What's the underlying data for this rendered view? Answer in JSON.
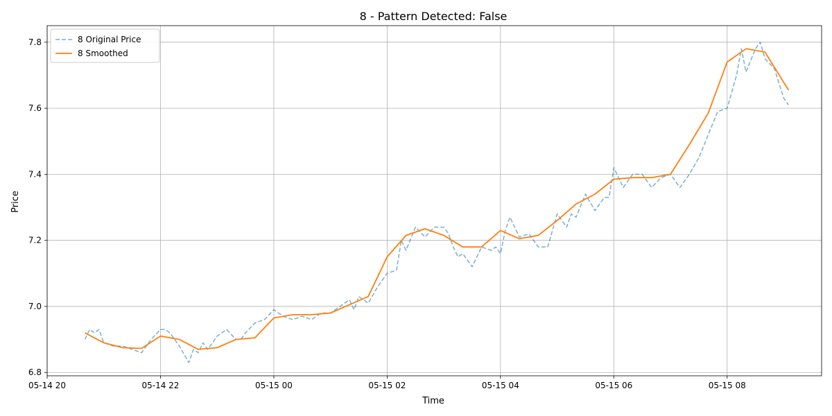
{
  "chart_data": {
    "type": "line",
    "title": "8 - Pattern Detected: False",
    "xlabel": "Time",
    "ylabel": "Price",
    "xlim": [
      "2024-05-14T20:00",
      "2024-05-15T09:40"
    ],
    "ylim": [
      6.79,
      7.85
    ],
    "x_ticks": [
      {
        "value": "2024-05-14T20:00",
        "label": "05-14 20"
      },
      {
        "value": "2024-05-14T22:00",
        "label": "05-14 22"
      },
      {
        "value": "2024-05-15T00:00",
        "label": "05-15 00"
      },
      {
        "value": "2024-05-15T02:00",
        "label": "05-15 02"
      },
      {
        "value": "2024-05-15T04:00",
        "label": "05-15 04"
      },
      {
        "value": "2024-05-15T06:00",
        "label": "05-15 06"
      },
      {
        "value": "2024-05-15T08:00",
        "label": "05-15 08"
      }
    ],
    "y_ticks": [
      {
        "value": 6.8,
        "label": "6.8"
      },
      {
        "value": 7.0,
        "label": "7.0"
      },
      {
        "value": 7.2,
        "label": "7.2"
      },
      {
        "value": 7.4,
        "label": "7.4"
      },
      {
        "value": 7.6,
        "label": "7.6"
      },
      {
        "value": 7.8,
        "label": "7.8"
      }
    ],
    "grid": true,
    "legend": "top-left",
    "series": [
      {
        "name": "8 Original Price",
        "color": "#1f77b4",
        "style": "dashed",
        "x": [
          "2024-05-14T20:40",
          "2024-05-14T20:45",
          "2024-05-14T20:50",
          "2024-05-14T20:55",
          "2024-05-14T21:00",
          "2024-05-14T21:10",
          "2024-05-14T21:20",
          "2024-05-14T21:30",
          "2024-05-14T21:40",
          "2024-05-14T21:50",
          "2024-05-14T22:00",
          "2024-05-14T22:05",
          "2024-05-14T22:10",
          "2024-05-14T22:20",
          "2024-05-14T22:30",
          "2024-05-14T22:35",
          "2024-05-14T22:40",
          "2024-05-14T22:45",
          "2024-05-14T22:50",
          "2024-05-14T23:00",
          "2024-05-14T23:10",
          "2024-05-14T23:20",
          "2024-05-14T23:25",
          "2024-05-14T23:30",
          "2024-05-14T23:40",
          "2024-05-14T23:50",
          "2024-05-15T00:00",
          "2024-05-15T00:10",
          "2024-05-15T00:20",
          "2024-05-15T00:30",
          "2024-05-15T00:40",
          "2024-05-15T00:50",
          "2024-05-15T01:00",
          "2024-05-15T01:10",
          "2024-05-15T01:15",
          "2024-05-15T01:20",
          "2024-05-15T01:25",
          "2024-05-15T01:30",
          "2024-05-15T01:40",
          "2024-05-15T01:50",
          "2024-05-15T02:00",
          "2024-05-15T02:10",
          "2024-05-15T02:15",
          "2024-05-15T02:20",
          "2024-05-15T02:30",
          "2024-05-15T02:40",
          "2024-05-15T02:50",
          "2024-05-15T03:00",
          "2024-05-15T03:05",
          "2024-05-15T03:10",
          "2024-05-15T03:15",
          "2024-05-15T03:20",
          "2024-05-15T03:30",
          "2024-05-15T03:40",
          "2024-05-15T03:50",
          "2024-05-15T03:55",
          "2024-05-15T04:00",
          "2024-05-15T04:05",
          "2024-05-15T04:10",
          "2024-05-15T04:20",
          "2024-05-15T04:30",
          "2024-05-15T04:40",
          "2024-05-15T04:45",
          "2024-05-15T04:50",
          "2024-05-15T05:00",
          "2024-05-15T05:10",
          "2024-05-15T05:15",
          "2024-05-15T05:20",
          "2024-05-15T05:30",
          "2024-05-15T05:40",
          "2024-05-15T05:50",
          "2024-05-15T05:55",
          "2024-05-15T06:00",
          "2024-05-15T06:10",
          "2024-05-15T06:20",
          "2024-05-15T06:30",
          "2024-05-15T06:40",
          "2024-05-15T06:50",
          "2024-05-15T07:00",
          "2024-05-15T07:10",
          "2024-05-15T07:20",
          "2024-05-15T07:30",
          "2024-05-15T07:40",
          "2024-05-15T07:50",
          "2024-05-15T08:00",
          "2024-05-15T08:10",
          "2024-05-15T08:15",
          "2024-05-15T08:20",
          "2024-05-15T08:30",
          "2024-05-15T08:35",
          "2024-05-15T08:40",
          "2024-05-15T08:50",
          "2024-05-15T09:00",
          "2024-05-15T09:05"
        ],
        "y": [
          6.9,
          6.93,
          6.92,
          6.93,
          6.89,
          6.88,
          6.88,
          6.87,
          6.86,
          6.9,
          6.93,
          6.93,
          6.92,
          6.88,
          6.83,
          6.87,
          6.86,
          6.89,
          6.87,
          6.91,
          6.93,
          6.9,
          6.9,
          6.92,
          6.95,
          6.96,
          6.99,
          6.97,
          6.96,
          6.97,
          6.96,
          6.98,
          6.98,
          7.0,
          7.01,
          7.02,
          6.99,
          7.03,
          7.01,
          7.06,
          7.1,
          7.11,
          7.2,
          7.17,
          7.24,
          7.21,
          7.24,
          7.24,
          7.22,
          7.18,
          7.15,
          7.16,
          7.12,
          7.18,
          7.17,
          7.18,
          7.16,
          7.23,
          7.27,
          7.21,
          7.22,
          7.18,
          7.18,
          7.18,
          7.28,
          7.24,
          7.28,
          7.27,
          7.34,
          7.29,
          7.33,
          7.33,
          7.42,
          7.36,
          7.4,
          7.4,
          7.36,
          7.39,
          7.4,
          7.36,
          7.4,
          7.45,
          7.52,
          7.59,
          7.6,
          7.7,
          7.78,
          7.71,
          7.78,
          7.8,
          7.75,
          7.72,
          7.63,
          7.61
        ]
      },
      {
        "name": "8 Smoothed",
        "color": "#ff7f0e",
        "style": "solid",
        "x": [
          "2024-05-14T20:40",
          "2024-05-14T21:00",
          "2024-05-14T21:20",
          "2024-05-14T21:40",
          "2024-05-14T22:00",
          "2024-05-14T22:20",
          "2024-05-14T22:40",
          "2024-05-14T23:00",
          "2024-05-14T23:20",
          "2024-05-14T23:40",
          "2024-05-15T00:00",
          "2024-05-15T00:20",
          "2024-05-15T00:40",
          "2024-05-15T01:00",
          "2024-05-15T01:20",
          "2024-05-15T01:40",
          "2024-05-15T02:00",
          "2024-05-15T02:20",
          "2024-05-15T02:40",
          "2024-05-15T03:00",
          "2024-05-15T03:20",
          "2024-05-15T03:40",
          "2024-05-15T04:00",
          "2024-05-15T04:20",
          "2024-05-15T04:40",
          "2024-05-15T05:00",
          "2024-05-15T05:20",
          "2024-05-15T05:40",
          "2024-05-15T06:00",
          "2024-05-15T06:20",
          "2024-05-15T06:40",
          "2024-05-15T07:00",
          "2024-05-15T07:20",
          "2024-05-15T07:40",
          "2024-05-15T08:00",
          "2024-05-15T08:20",
          "2024-05-15T08:40",
          "2024-05-15T09:05"
        ],
        "y": [
          6.92,
          6.89,
          6.875,
          6.873,
          6.91,
          6.9,
          6.87,
          6.875,
          6.9,
          6.905,
          6.965,
          6.975,
          6.975,
          6.98,
          7.005,
          7.03,
          7.15,
          7.215,
          7.235,
          7.215,
          7.18,
          7.18,
          7.23,
          7.205,
          7.215,
          7.26,
          7.31,
          7.34,
          7.385,
          7.39,
          7.39,
          7.4,
          7.49,
          7.585,
          7.74,
          7.78,
          7.77,
          7.655
        ]
      }
    ]
  }
}
